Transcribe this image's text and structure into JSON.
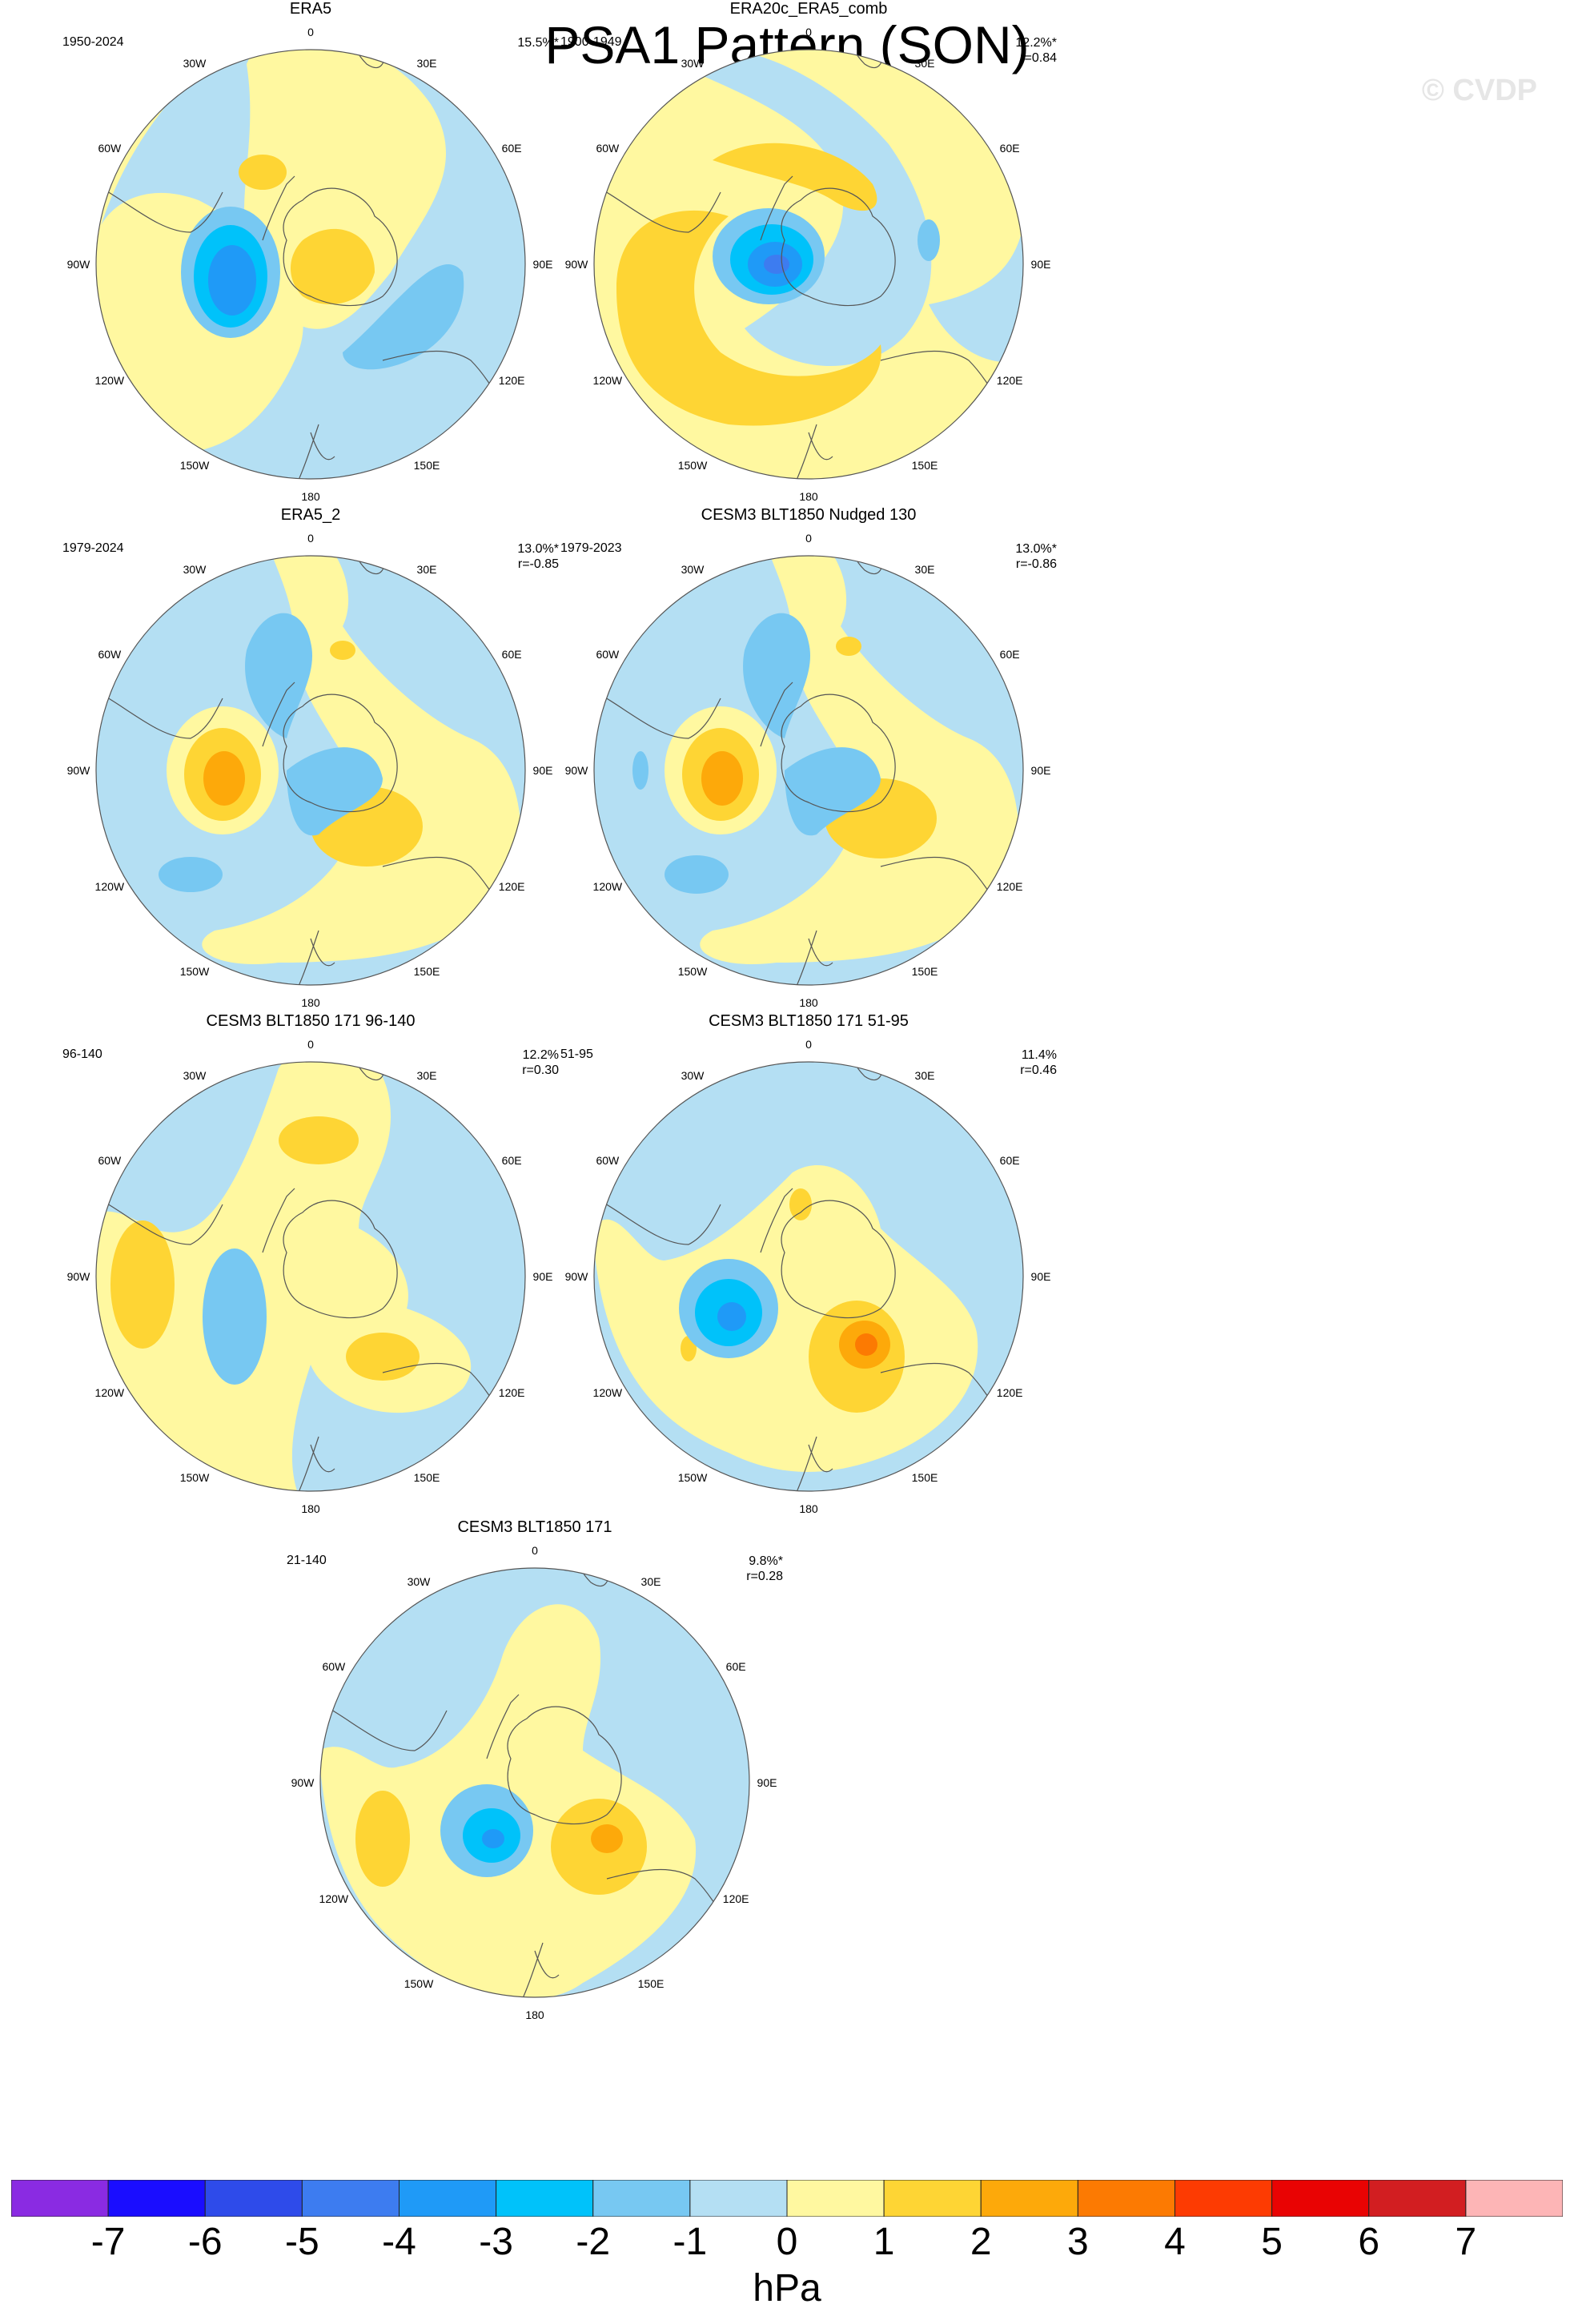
{
  "title": "PSA1 Pattern (SON)",
  "watermark": "© CVDP",
  "grid_labels": [
    "0",
    "30E",
    "60E",
    "90E",
    "120E",
    "150E",
    "180",
    "150W",
    "120W",
    "90W",
    "60W",
    "30W"
  ],
  "panels": [
    {
      "name": "ERA5",
      "period": "1950-2024",
      "pct": "15.5%*",
      "r": ""
    },
    {
      "name": "ERA20c_ERA5_comb",
      "period": "1900-1949",
      "pct": "12.2%*",
      "r": "r=0.84"
    },
    {
      "name": "ERA5_2",
      "period": "1979-2024",
      "pct": "13.0%*",
      "r": "r=-0.85"
    },
    {
      "name": "CESM3 BLT1850 Nudged 130",
      "period": "1979-2023",
      "pct": "13.0%*",
      "r": "r=-0.86"
    },
    {
      "name": "CESM3 BLT1850 171 96-140",
      "period": "96-140",
      "pct": "12.2%",
      "r": "r=0.30"
    },
    {
      "name": "CESM3 BLT1850 171 51-95",
      "period": "51-95",
      "pct": "11.4%",
      "r": "r=0.46"
    },
    {
      "name": "CESM3 BLT1850 171",
      "period": "21-140",
      "pct": "9.8%*",
      "r": "r=0.28"
    }
  ],
  "colorbar": {
    "unit": "hPa",
    "labels": [
      "-7",
      "-6",
      "-5",
      "-4",
      "-3",
      "-2",
      "-1",
      "0",
      "1",
      "2",
      "3",
      "4",
      "5",
      "6",
      "7"
    ],
    "colors": [
      "#8a2be2",
      "#1a0dff",
      "#2e4bea",
      "#3d7cf0",
      "#1f9af7",
      "#00c2fa",
      "#77c8f2",
      "#b4dff3",
      "#fff8a0",
      "#fed534",
      "#fda90a",
      "#fc7a02",
      "#fd3b02",
      "#e90303",
      "#d21e21",
      "#fdb5b6"
    ]
  },
  "colors": {
    "land_outline": "#555555",
    "circle": "#555555"
  }
}
